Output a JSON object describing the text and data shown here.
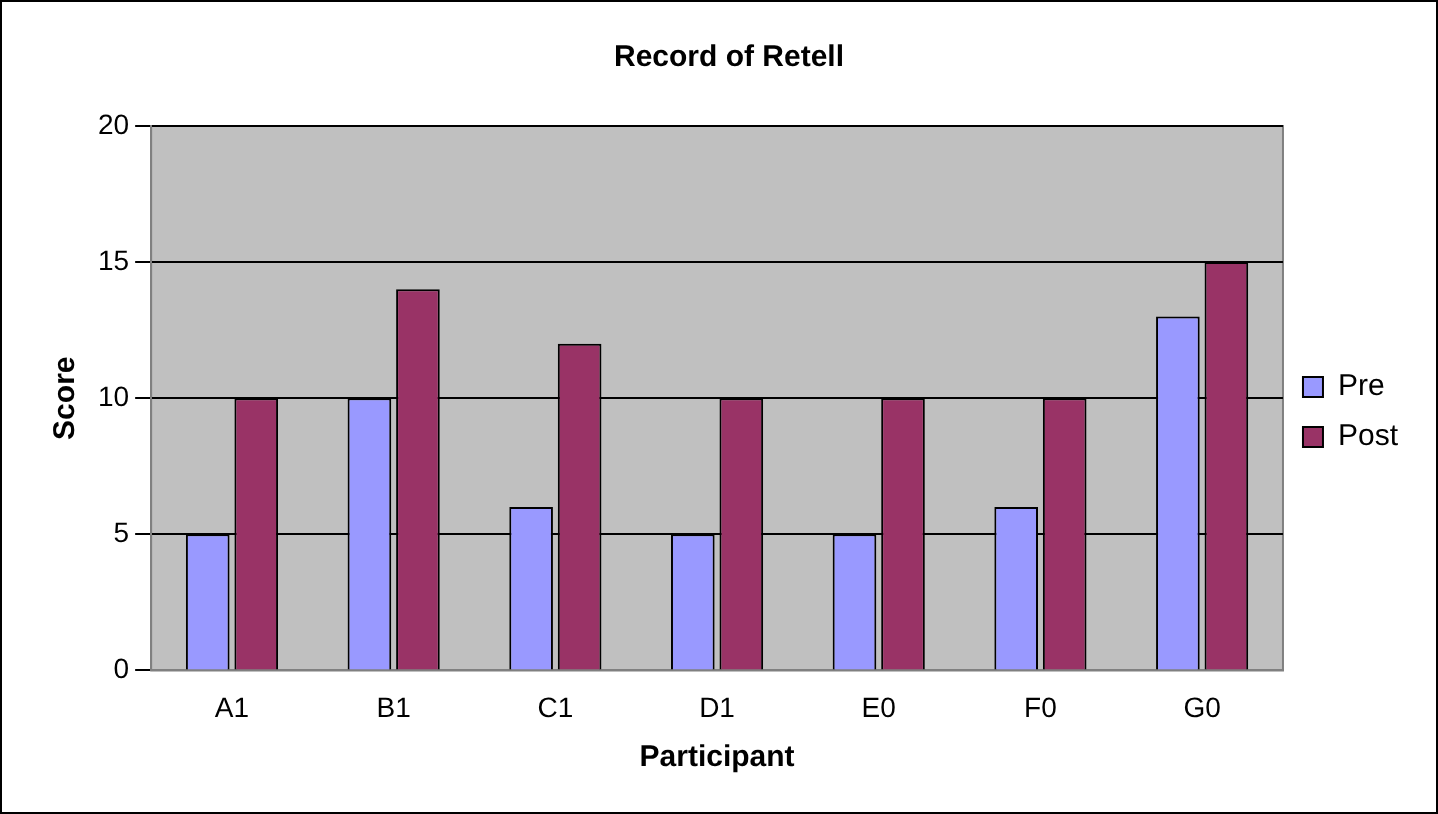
{
  "chart_data": {
    "type": "bar",
    "title": "Record of Retell",
    "xlabel": "Participant",
    "ylabel": "Score",
    "categories": [
      "A1",
      "B1",
      "C1",
      "D1",
      "E0",
      "F0",
      "G0"
    ],
    "series": [
      {
        "name": "Pre",
        "color": "#9999ff",
        "values": [
          5,
          10,
          6,
          5,
          5,
          6,
          13
        ]
      },
      {
        "name": "Post",
        "color": "#993366",
        "values": [
          10,
          14,
          12,
          10,
          10,
          10,
          15
        ]
      }
    ],
    "ylim": [
      0,
      20
    ],
    "yticks": [
      0,
      5,
      10,
      15,
      20
    ],
    "grid": "y",
    "legend": "right"
  }
}
